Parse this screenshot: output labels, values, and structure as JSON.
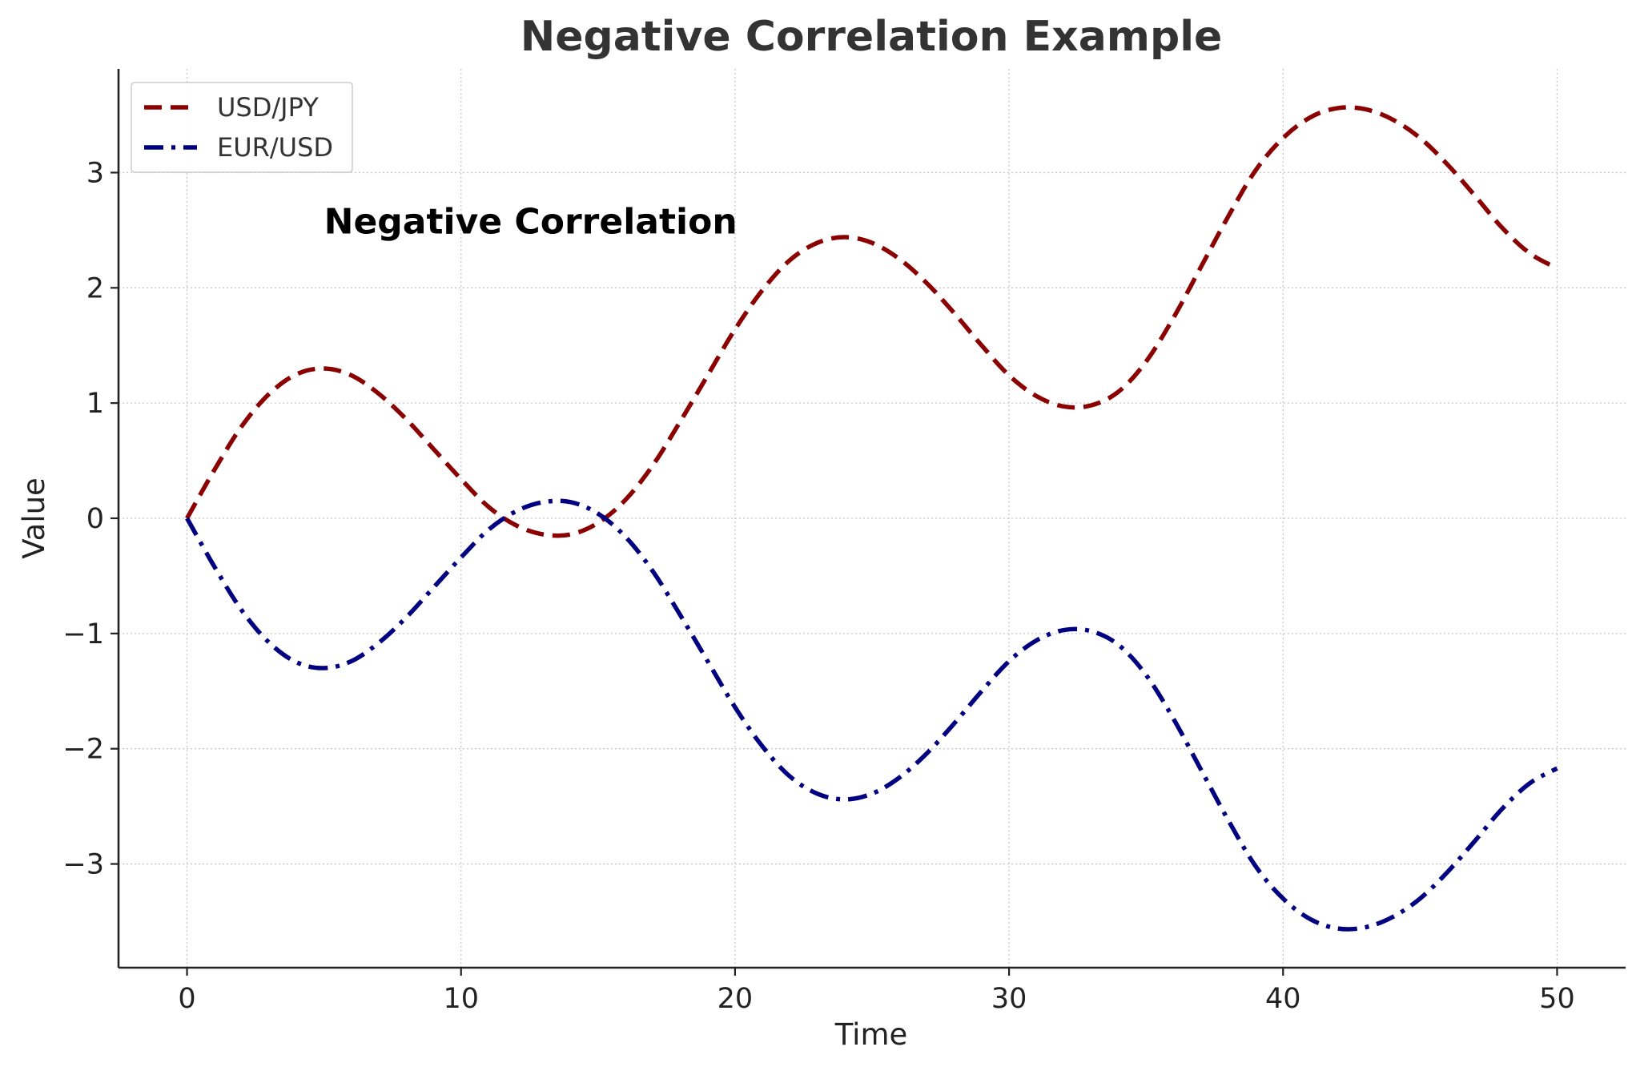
{
  "chart_data": {
    "type": "line",
    "title": "Negative Correlation Example",
    "xlabel": "Time",
    "ylabel": "Value",
    "xlim": [
      -2.5,
      52.5
    ],
    "ylim": [
      -3.9,
      3.9
    ],
    "xticks": [
      0,
      10,
      20,
      30,
      40,
      50
    ],
    "xtick_labels": [
      "0",
      "10",
      "20",
      "30",
      "40",
      "50"
    ],
    "yticks": [
      -3,
      -2,
      -1,
      0,
      1,
      2,
      3
    ],
    "ytick_labels": [
      "−3",
      "−2",
      "−1",
      "0",
      "1",
      "2",
      "3"
    ],
    "grid": true,
    "legend_position": "top-left",
    "annotation": {
      "text": "Negative Correlation",
      "x": 5,
      "y": 2.5
    },
    "x": [
      0,
      1,
      2,
      3,
      4,
      5,
      6,
      7,
      8,
      9,
      10,
      11,
      12,
      13,
      14,
      15,
      16,
      17,
      18,
      19,
      20,
      21,
      22,
      23,
      24,
      25,
      26,
      27,
      28,
      29,
      30,
      31,
      32,
      33,
      34,
      35,
      36,
      37,
      38,
      39,
      40,
      41,
      42,
      43,
      44,
      45,
      46,
      47,
      48,
      49,
      50
    ],
    "series": [
      {
        "name": "USD/JPY",
        "color": "#8b0000",
        "style": "dashed",
        "values": [
          0.0,
          0.42,
          0.8,
          1.08,
          1.25,
          1.3,
          1.24,
          1.08,
          0.86,
          0.6,
          0.34,
          0.1,
          -0.06,
          -0.14,
          -0.14,
          -0.04,
          0.16,
          0.46,
          0.84,
          1.24,
          1.64,
          1.98,
          2.24,
          2.39,
          2.44,
          2.39,
          2.25,
          2.04,
          1.78,
          1.5,
          1.24,
          1.06,
          0.97,
          0.98,
          1.1,
          1.36,
          1.74,
          2.18,
          2.62,
          3.02,
          3.3,
          3.48,
          3.56,
          3.55,
          3.46,
          3.3,
          3.07,
          2.8,
          2.52,
          2.3,
          2.17
        ]
      },
      {
        "name": "EUR/USD",
        "color": "#000080",
        "style": "dashdot",
        "values": [
          0.0,
          -0.42,
          -0.8,
          -1.08,
          -1.25,
          -1.3,
          -1.24,
          -1.08,
          -0.86,
          -0.6,
          -0.34,
          -0.1,
          0.06,
          0.14,
          0.14,
          0.04,
          -0.16,
          -0.46,
          -0.84,
          -1.24,
          -1.64,
          -1.98,
          -2.24,
          -2.39,
          -2.44,
          -2.39,
          -2.25,
          -2.04,
          -1.78,
          -1.5,
          -1.24,
          -1.06,
          -0.97,
          -0.98,
          -1.1,
          -1.36,
          -1.74,
          -2.18,
          -2.62,
          -3.02,
          -3.3,
          -3.48,
          -3.56,
          -3.55,
          -3.46,
          -3.3,
          -3.07,
          -2.8,
          -2.52,
          -2.3,
          -2.17
        ]
      }
    ]
  }
}
